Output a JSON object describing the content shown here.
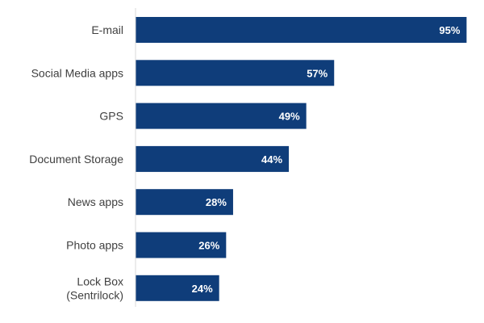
{
  "chart_data": {
    "type": "bar",
    "orientation": "horizontal",
    "title": "",
    "xlabel": "",
    "ylabel": "",
    "categories": [
      "E-mail",
      "Social Media apps",
      "GPS",
      "Document Storage",
      "News apps",
      "Photo apps",
      "Lock Box\n(Sentrilock)"
    ],
    "values": [
      95,
      57,
      49,
      44,
      28,
      26,
      24
    ],
    "value_labels": [
      "95%",
      "57%",
      "49%",
      "44%",
      "28%",
      "26%",
      "24%"
    ],
    "xlim": [
      0,
      100
    ],
    "grid": false,
    "legend": "none",
    "bar_color": "#0f3d7a",
    "axis_color": "#d9d9d9"
  }
}
